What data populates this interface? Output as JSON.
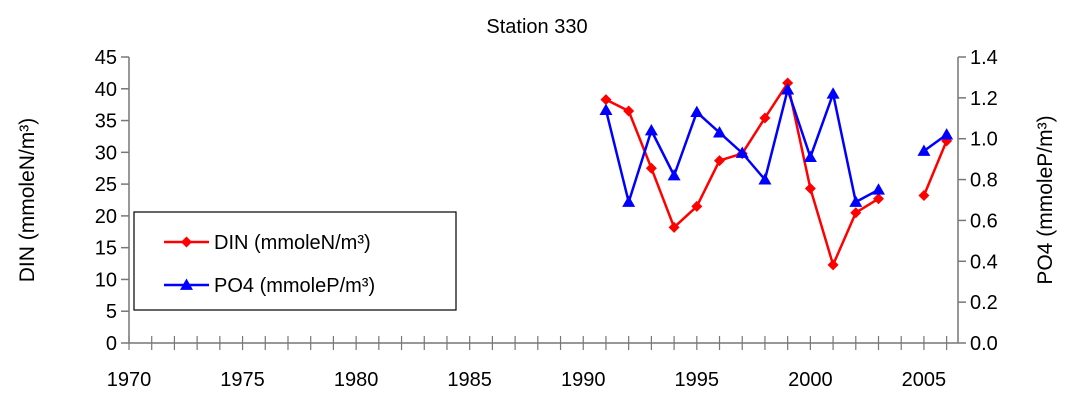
{
  "chart_data": {
    "type": "line",
    "title": "Station 330",
    "xlabel": "",
    "ylabel_left": "DIN (mmoleN/m³)",
    "ylabel_right": "PO4 (mmoleP/m³)",
    "xlim": [
      1970,
      2006.5
    ],
    "ylim_left": [
      0,
      45
    ],
    "ylim_right": [
      0,
      1.4
    ],
    "x_ticks": [
      "1970",
      "1975",
      "1980",
      "1985",
      "1990",
      "1995",
      "2000",
      "2005"
    ],
    "y_ticks_left": [
      "0",
      "5",
      "10",
      "15",
      "20",
      "25",
      "30",
      "35",
      "40",
      "45"
    ],
    "y_ticks_right": [
      "0.0",
      "0.2",
      "0.4",
      "0.6",
      "0.8",
      "1.0",
      "1.2",
      "1.4"
    ],
    "grid": false,
    "legend_position": "lower-left",
    "series": [
      {
        "name": "DIN (mmoleN/m³)",
        "axis": "left",
        "color": "#ff0000",
        "marker": "diamond",
        "segments": [
          {
            "x": [
              1991,
              1992,
              1993,
              1994,
              1995,
              1996,
              1997,
              1998,
              1999,
              2000,
              2001,
              2002,
              2003
            ],
            "y": [
              38.3,
              36.5,
              27.5,
              18.2,
              21.5,
              28.7,
              29.8,
              35.4,
              40.9,
              24.3,
              12.3,
              20.5,
              22.7
            ]
          },
          {
            "x": [
              2005,
              2006
            ],
            "y": [
              23.2,
              31.8
            ]
          }
        ]
      },
      {
        "name": "PO4 (mmoleP/m³)",
        "axis": "right",
        "color": "#0000ff",
        "marker": "triangle",
        "segments": [
          {
            "x": [
              1991,
              1992,
              1993,
              1994,
              1995,
              1996,
              1997,
              1998,
              1999,
              2000,
              2001,
              2002,
              2003
            ],
            "y": [
              1.14,
              0.69,
              1.04,
              0.82,
              1.13,
              1.03,
              0.93,
              0.8,
              1.24,
              0.91,
              1.22,
              0.69,
              0.75
            ]
          },
          {
            "x": [
              2005,
              2006
            ],
            "y": [
              0.94,
              1.02
            ]
          }
        ]
      }
    ]
  }
}
